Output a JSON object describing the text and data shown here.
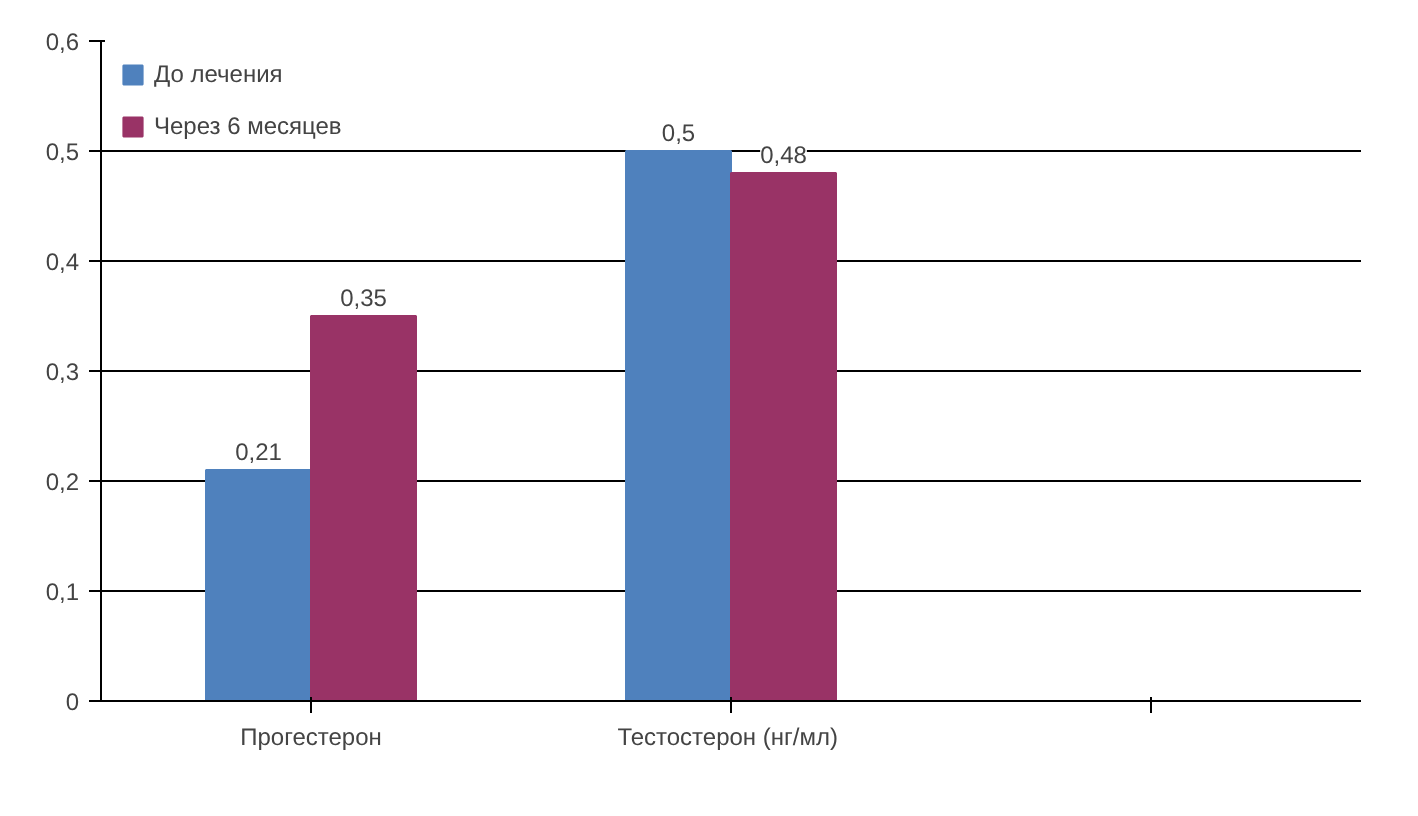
{
  "chart_data": {
    "type": "bar",
    "categories": [
      "Прогестерон",
      "Тестостерон  (нг/мл)",
      null
    ],
    "series": [
      {
        "name": "До лечения",
        "color": "#4f81bd",
        "values": [
          0.21,
          0.5,
          null
        ]
      },
      {
        "name": "Через 6 месяцев",
        "color": "#993366",
        "values": [
          0.35,
          0.48,
          null
        ]
      }
    ],
    "ylim": [
      0,
      0.6
    ],
    "yticks": [
      {
        "value": 0,
        "label": "0"
      },
      {
        "value": 0.1,
        "label": "0,1"
      },
      {
        "value": 0.2,
        "label": "0,2"
      },
      {
        "value": 0.3,
        "label": "0,3"
      },
      {
        "value": 0.4,
        "label": "0,4"
      },
      {
        "value": 0.5,
        "label": "0,5"
      },
      {
        "value": 0.6,
        "label": "0,6"
      }
    ],
    "value_labels": [
      [
        "0,21",
        "0,5",
        null
      ],
      [
        "0,35",
        "0,48",
        null
      ]
    ],
    "grid": "y",
    "legend": "top left"
  }
}
